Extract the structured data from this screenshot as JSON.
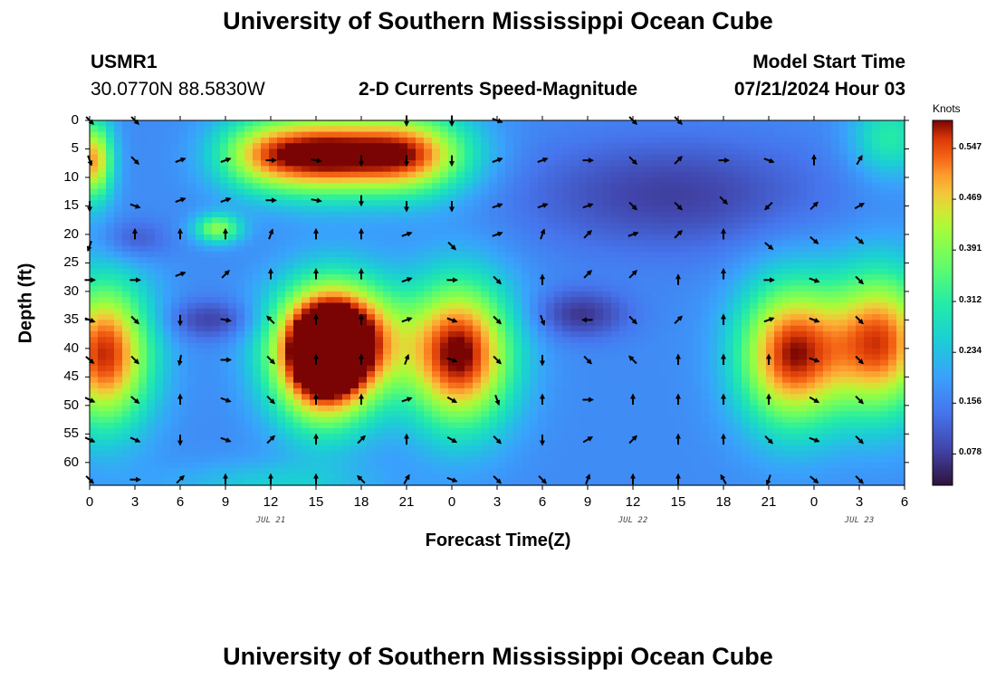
{
  "header": {
    "title": "University of Southern Mississippi Ocean Cube",
    "station_id": "USMR1",
    "location": "30.0770N  88.5830W",
    "product": "2-D Currents Speed-Magnitude",
    "model_start_label": "Model Start Time",
    "model_start_value": "07/21/2024 Hour 03"
  },
  "footer": {
    "title": "University of Southern Mississippi Ocean Cube"
  },
  "chart_data": {
    "type": "heatmap",
    "xlabel": "Forecast Time(Z)",
    "ylabel": "Depth (ft)",
    "x_ticks": [
      "0",
      "3",
      "6",
      "9",
      "12",
      "15",
      "18",
      "21",
      "0",
      "3",
      "6",
      "9",
      "12",
      "15",
      "18",
      "21",
      "0",
      "3",
      "6"
    ],
    "x_hours_range": [
      0,
      54
    ],
    "y_ticks": [
      "0",
      "5",
      "10",
      "15",
      "20",
      "25",
      "30",
      "35",
      "40",
      "45",
      "50",
      "55",
      "60"
    ],
    "y_range": [
      0,
      64
    ],
    "date_labels": [
      {
        "text": "JUL 21",
        "hour": 12
      },
      {
        "text": "JUL 22",
        "hour": 36
      },
      {
        "text": "JUL 23",
        "hour": 51
      }
    ],
    "colorbar": {
      "unit": "Knots",
      "range": [
        0.03,
        0.59
      ],
      "ticks": [
        "0.547",
        "0.469",
        "0.391",
        "0.312",
        "0.234",
        "0.156",
        "0.078"
      ],
      "tick_values": [
        0.547,
        0.469,
        0.391,
        0.312,
        0.234,
        0.156,
        0.078
      ]
    },
    "blobs": [
      {
        "hour": 0.3,
        "depth": 7,
        "sh": 0.9,
        "sd": 5,
        "amp": 0.33
      },
      {
        "hour": 15,
        "depth": 6,
        "sh": 3,
        "sd": 5,
        "amp": 0.38
      },
      {
        "hour": 11,
        "depth": 6,
        "sh": 2.2,
        "sd": 4.5,
        "amp": 0.18
      },
      {
        "hour": 21,
        "depth": 6,
        "sh": 3,
        "sd": 5,
        "amp": 0.38
      },
      {
        "hour": 8.5,
        "depth": 19,
        "sh": 1.1,
        "sd": 1.8,
        "amp": 0.23
      },
      {
        "hour": 1,
        "depth": 41,
        "sh": 2.2,
        "sd": 9,
        "amp": 0.4
      },
      {
        "hour": 16.5,
        "depth": 38,
        "sh": 2.8,
        "sd": 7,
        "amp": 0.4
      },
      {
        "hour": 24.5,
        "depth": 41,
        "sh": 2.5,
        "sd": 9,
        "amp": 0.43
      },
      {
        "hour": 15.5,
        "depth": 43,
        "sh": 2.4,
        "sd": 8,
        "amp": 0.38
      },
      {
        "hour": 46.5,
        "depth": 41,
        "sh": 2.5,
        "sd": 9,
        "amp": 0.4
      },
      {
        "hour": 52.5,
        "depth": 39,
        "sh": 2.4,
        "sd": 9,
        "amp": 0.37
      },
      {
        "hour": 53,
        "depth": 3,
        "sh": 1.8,
        "sd": 5,
        "amp": 0.14
      },
      {
        "hour": 12,
        "depth": 64,
        "sh": 5,
        "sd": 3,
        "amp": 0.08
      }
    ],
    "lows": [
      {
        "hour": 8,
        "depth": 35,
        "sh": 2.2,
        "sd": 2.5,
        "amp": 0.09
      },
      {
        "hour": 32.5,
        "depth": 34,
        "sh": 2.2,
        "sd": 3,
        "amp": 0.1
      },
      {
        "hour": 38.5,
        "depth": 13,
        "sh": 7,
        "sd": 7,
        "amp": 0.09
      },
      {
        "hour": 3,
        "depth": 21,
        "sh": 1.5,
        "sd": 2.5,
        "amp": 0.07
      }
    ],
    "base_speed": 0.17,
    "arrows": [
      [
        0,
        0,
        135
      ],
      [
        0,
        7,
        160
      ],
      [
        0,
        15,
        180
      ],
      [
        0,
        22,
        200
      ],
      [
        0,
        28,
        90
      ],
      [
        0,
        35,
        110
      ],
      [
        0,
        42,
        130
      ],
      [
        0,
        49,
        115
      ],
      [
        0,
        56,
        115
      ],
      [
        0,
        63,
        135
      ],
      [
        3,
        0,
        135
      ],
      [
        3,
        7,
        135
      ],
      [
        3,
        15,
        110
      ],
      [
        3,
        20,
        0
      ],
      [
        3,
        28,
        90
      ],
      [
        3,
        35,
        135
      ],
      [
        3,
        42,
        135
      ],
      [
        3,
        49,
        130
      ],
      [
        3,
        56,
        115
      ],
      [
        3,
        63,
        90
      ],
      [
        6,
        7,
        70
      ],
      [
        6,
        14,
        70
      ],
      [
        6,
        20,
        0
      ],
      [
        6,
        27,
        70
      ],
      [
        6,
        35,
        180
      ],
      [
        6,
        42,
        190
      ],
      [
        6,
        49,
        0
      ],
      [
        6,
        56,
        180
      ],
      [
        6,
        63,
        45
      ],
      [
        9,
        7,
        70
      ],
      [
        9,
        14,
        70
      ],
      [
        9,
        20,
        0
      ],
      [
        9,
        27,
        45
      ],
      [
        9,
        35,
        100
      ],
      [
        9,
        42,
        90
      ],
      [
        9,
        49,
        110
      ],
      [
        9,
        56,
        110
      ],
      [
        9,
        63,
        0
      ],
      [
        12,
        7,
        90
      ],
      [
        12,
        14,
        90
      ],
      [
        12,
        20,
        20
      ],
      [
        12,
        27,
        0
      ],
      [
        12,
        35,
        315
      ],
      [
        12,
        42,
        135
      ],
      [
        12,
        49,
        135
      ],
      [
        12,
        56,
        45
      ],
      [
        12,
        63,
        0
      ],
      [
        15,
        7,
        100
      ],
      [
        15,
        14,
        100
      ],
      [
        15,
        20,
        0
      ],
      [
        15,
        27,
        0
      ],
      [
        15,
        35,
        0
      ],
      [
        15,
        42,
        0
      ],
      [
        15,
        49,
        0
      ],
      [
        15,
        56,
        0
      ],
      [
        15,
        63,
        0
      ],
      [
        18,
        7,
        180
      ],
      [
        18,
        14,
        180
      ],
      [
        18,
        20,
        0
      ],
      [
        18,
        27,
        0
      ],
      [
        18,
        35,
        0
      ],
      [
        18,
        42,
        0
      ],
      [
        18,
        49,
        0
      ],
      [
        18,
        56,
        45
      ],
      [
        18,
        63,
        315
      ],
      [
        21,
        0,
        180
      ],
      [
        21,
        7,
        180
      ],
      [
        21,
        15,
        180
      ],
      [
        21,
        20,
        70
      ],
      [
        21,
        28,
        70
      ],
      [
        21,
        35,
        70
      ],
      [
        21,
        42,
        20
      ],
      [
        21,
        49,
        70
      ],
      [
        21,
        56,
        0
      ],
      [
        21,
        63,
        30
      ],
      [
        24,
        0,
        180
      ],
      [
        24,
        7,
        180
      ],
      [
        24,
        15,
        180
      ],
      [
        24,
        22,
        135
      ],
      [
        24,
        28,
        90
      ],
      [
        24,
        35,
        110
      ],
      [
        24,
        42,
        110
      ],
      [
        24,
        49,
        120
      ],
      [
        24,
        56,
        120
      ],
      [
        24,
        63,
        110
      ],
      [
        27,
        0,
        110
      ],
      [
        27,
        7,
        70
      ],
      [
        27,
        15,
        70
      ],
      [
        27,
        20,
        70
      ],
      [
        27,
        28,
        135
      ],
      [
        27,
        35,
        135
      ],
      [
        27,
        42,
        135
      ],
      [
        27,
        49,
        160
      ],
      [
        27,
        56,
        135
      ],
      [
        27,
        63,
        135
      ],
      [
        30,
        7,
        70
      ],
      [
        30,
        15,
        70
      ],
      [
        30,
        20,
        20
      ],
      [
        30,
        28,
        0
      ],
      [
        30,
        35,
        160
      ],
      [
        30,
        42,
        180
      ],
      [
        30,
        49,
        0
      ],
      [
        30,
        56,
        180
      ],
      [
        30,
        63,
        135
      ],
      [
        33,
        7,
        90
      ],
      [
        33,
        15,
        70
      ],
      [
        33,
        20,
        45
      ],
      [
        33,
        27,
        45
      ],
      [
        33,
        35,
        270
      ],
      [
        33,
        42,
        135
      ],
      [
        33,
        49,
        90
      ],
      [
        33,
        56,
        60
      ],
      [
        33,
        63,
        20
      ],
      [
        36,
        0,
        135
      ],
      [
        36,
        7,
        135
      ],
      [
        36,
        15,
        135
      ],
      [
        36,
        20,
        70
      ],
      [
        36,
        27,
        45
      ],
      [
        36,
        35,
        135
      ],
      [
        36,
        42,
        315
      ],
      [
        36,
        49,
        0
      ],
      [
        36,
        56,
        45
      ],
      [
        36,
        63,
        0
      ],
      [
        39,
        0,
        135
      ],
      [
        39,
        7,
        45
      ],
      [
        39,
        15,
        135
      ],
      [
        39,
        20,
        45
      ],
      [
        39,
        28,
        0
      ],
      [
        39,
        35,
        45
      ],
      [
        39,
        42,
        0
      ],
      [
        39,
        49,
        0
      ],
      [
        39,
        56,
        0
      ],
      [
        39,
        63,
        0
      ],
      [
        42,
        7,
        90
      ],
      [
        42,
        14,
        135
      ],
      [
        42,
        20,
        0
      ],
      [
        42,
        27,
        0
      ],
      [
        42,
        35,
        0
      ],
      [
        42,
        42,
        0
      ],
      [
        42,
        49,
        0
      ],
      [
        42,
        56,
        0
      ],
      [
        42,
        63,
        330
      ],
      [
        45,
        7,
        110
      ],
      [
        45,
        15,
        225
      ],
      [
        45,
        22,
        130
      ],
      [
        45,
        28,
        90
      ],
      [
        45,
        35,
        70
      ],
      [
        45,
        42,
        0
      ],
      [
        45,
        49,
        0
      ],
      [
        45,
        56,
        135
      ],
      [
        45,
        63,
        200
      ],
      [
        48,
        7,
        0
      ],
      [
        48,
        15,
        45
      ],
      [
        48,
        21,
        130
      ],
      [
        48,
        28,
        110
      ],
      [
        48,
        35,
        110
      ],
      [
        48,
        42,
        110
      ],
      [
        48,
        49,
        120
      ],
      [
        48,
        56,
        110
      ],
      [
        48,
        63,
        130
      ],
      [
        51,
        7,
        30
      ],
      [
        51,
        15,
        60
      ],
      [
        51,
        21,
        130
      ],
      [
        51,
        28,
        135
      ],
      [
        51,
        35,
        135
      ],
      [
        51,
        42,
        135
      ],
      [
        51,
        49,
        135
      ],
      [
        51,
        56,
        135
      ],
      [
        51,
        63,
        135
      ]
    ]
  }
}
